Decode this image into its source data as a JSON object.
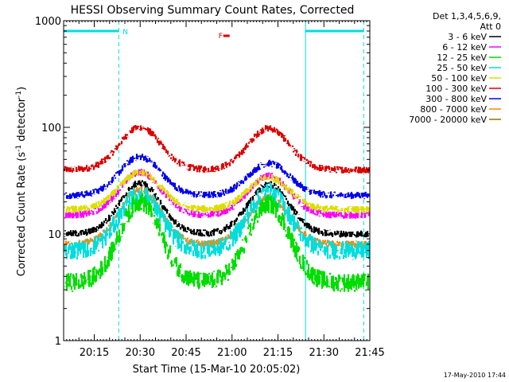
{
  "chart_data": {
    "type": "line",
    "title": "HESSI Observing Summary Count Rates, Corrected",
    "xlabel": "Start Time (15-Mar-10 20:05:02)",
    "ylabel_main": "Corrected Count Rate (s",
    "ylabel_sup1": "-1",
    "ylabel_mid": " detector",
    "ylabel_sup2": "-1",
    "ylabel_end": ")",
    "yscale": "log",
    "ylim": [
      1,
      1000
    ],
    "xlim_minutes": [
      20.05,
      21.75
    ],
    "x_ticks": [
      "20:15",
      "20:30",
      "20:45",
      "21:00",
      "21:15",
      "21:30",
      "21:45"
    ],
    "y_ticks": [
      "1",
      "10",
      "100",
      "1000"
    ],
    "legend_header": [
      "Det 1,3,4,5,6,9,",
      "Att 0"
    ],
    "series": [
      {
        "name": "3 - 6 keV",
        "color": "#000000"
      },
      {
        "name": "6 - 12 keV",
        "color": "#ff00ff"
      },
      {
        "name": "12 - 25 keV",
        "color": "#00dd00"
      },
      {
        "name": "25 - 50 keV",
        "color": "#00dddd"
      },
      {
        "name": "50 - 100 keV",
        "color": "#dddd00"
      },
      {
        "name": "100 - 300 keV",
        "color": "#dd0000"
      },
      {
        "name": "300 - 800 keV",
        "color": "#0000ee"
      },
      {
        "name": "800 - 7000 keV",
        "color": "#ff8800"
      },
      {
        "name": "7000 - 20000 keV",
        "color": "#887700"
      }
    ],
    "curves": [
      {
        "color": "#dd0000",
        "base": 40,
        "p1": 100,
        "p2": 98
      },
      {
        "color": "#0000ee",
        "base": 23,
        "p1": 53,
        "p2": 46
      },
      {
        "color": "#ff00ff",
        "base": 15,
        "p1": 38,
        "p2": 35
      },
      {
        "color": "#dddd00",
        "base": 17,
        "p1": 38,
        "p2": 34
      },
      {
        "color": "#000000",
        "base": 10,
        "p1": 30,
        "p2": 29
      },
      {
        "color": "#ff8800",
        "base": 8,
        "p1": 26,
        "p2": 22
      },
      {
        "color": "#00dddd",
        "base": 7,
        "p1": 24,
        "p2": 25
      },
      {
        "color": "#00dd00",
        "base": 3.5,
        "p1": 20,
        "p2": 19
      }
    ],
    "night_markers": [
      {
        "x": "20:05",
        "x2": "20:23",
        "label": "N"
      },
      {
        "x": "21:24",
        "x2": "21:43",
        "label": ""
      }
    ],
    "flare_marker": {
      "label": "F",
      "x": "21:00",
      "y": 800
    },
    "annotations": [
      "17-May-2010 17:44"
    ],
    "colors": {
      "saa_bar": "#00dddd",
      "flare": "#dd0000",
      "axes": "#000000"
    }
  }
}
